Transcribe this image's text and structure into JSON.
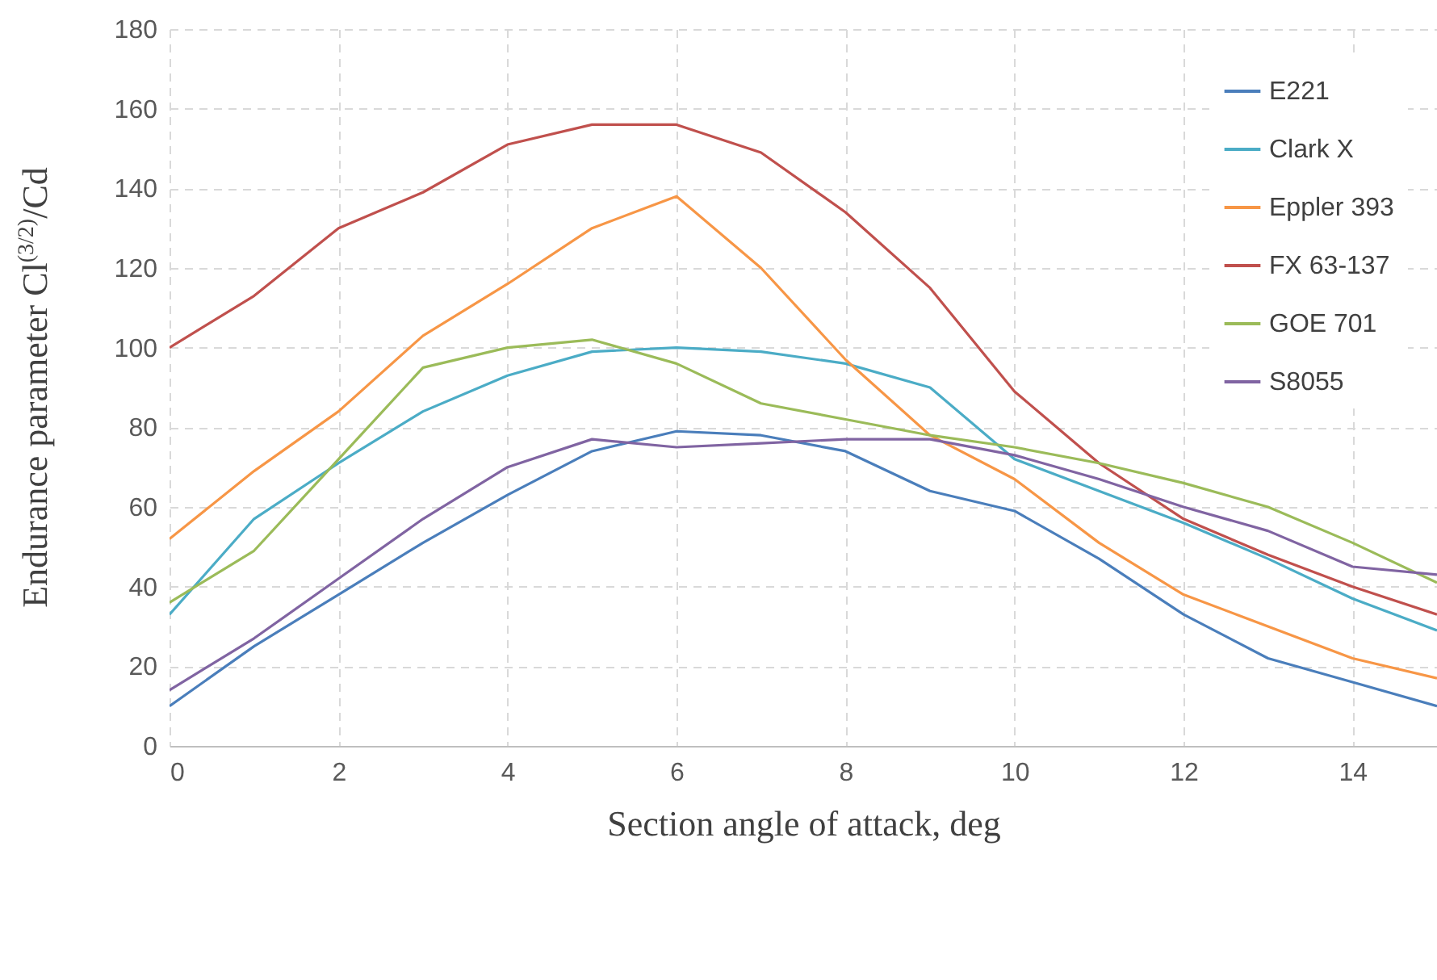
{
  "chart_data": {
    "type": "line",
    "xlabel": "Section angle of attack, deg",
    "ylabel": "Endurance parameter Cl$^{(3/2)}$/Cd",
    "x": [
      0,
      1,
      2,
      3,
      4,
      5,
      6,
      7,
      8,
      9,
      10,
      11,
      12,
      13,
      14,
      15
    ],
    "series": [
      {
        "name": "E221",
        "color": "#4a7ebb",
        "values": [
          10,
          25,
          38,
          51,
          63,
          74,
          79,
          78,
          74,
          64,
          59,
          47,
          33,
          22,
          16,
          10
        ]
      },
      {
        "name": "Clark X",
        "color": "#4bacc6",
        "values": [
          33,
          57,
          71,
          84,
          93,
          99,
          100,
          99,
          96,
          90,
          72,
          64,
          56,
          47,
          37,
          29
        ]
      },
      {
        "name": "Eppler 393",
        "color": "#f79646",
        "values": [
          52,
          69,
          84,
          103,
          116,
          130,
          138,
          120,
          97,
          78,
          67,
          51,
          38,
          30,
          22,
          17
        ]
      },
      {
        "name": "FX 63-137",
        "color": "#c0504d",
        "values": [
          100,
          113,
          130,
          139,
          151,
          156,
          156,
          149,
          134,
          115,
          89,
          71,
          57,
          48,
          40,
          33
        ]
      },
      {
        "name": "GOE 701",
        "color": "#9bbb59",
        "values": [
          36,
          49,
          72,
          95,
          100,
          102,
          96,
          86,
          82,
          78,
          75,
          71,
          66,
          60,
          51,
          41
        ]
      },
      {
        "name": "S8055",
        "color": "#8064a2",
        "values": [
          14,
          27,
          42,
          57,
          70,
          77,
          75,
          76,
          77,
          77,
          73,
          67,
          60,
          54,
          45,
          43
        ]
      }
    ],
    "xlim": [
      0,
      15
    ],
    "xticks": [
      0,
      2,
      4,
      6,
      8,
      10,
      12,
      14
    ],
    "ylim": [
      0,
      180
    ],
    "yticks": [
      0,
      20,
      40,
      60,
      80,
      100,
      120,
      140,
      160,
      180
    ],
    "grid": true,
    "legend": "top right",
    "marker": "none",
    "line_style": "solid"
  }
}
